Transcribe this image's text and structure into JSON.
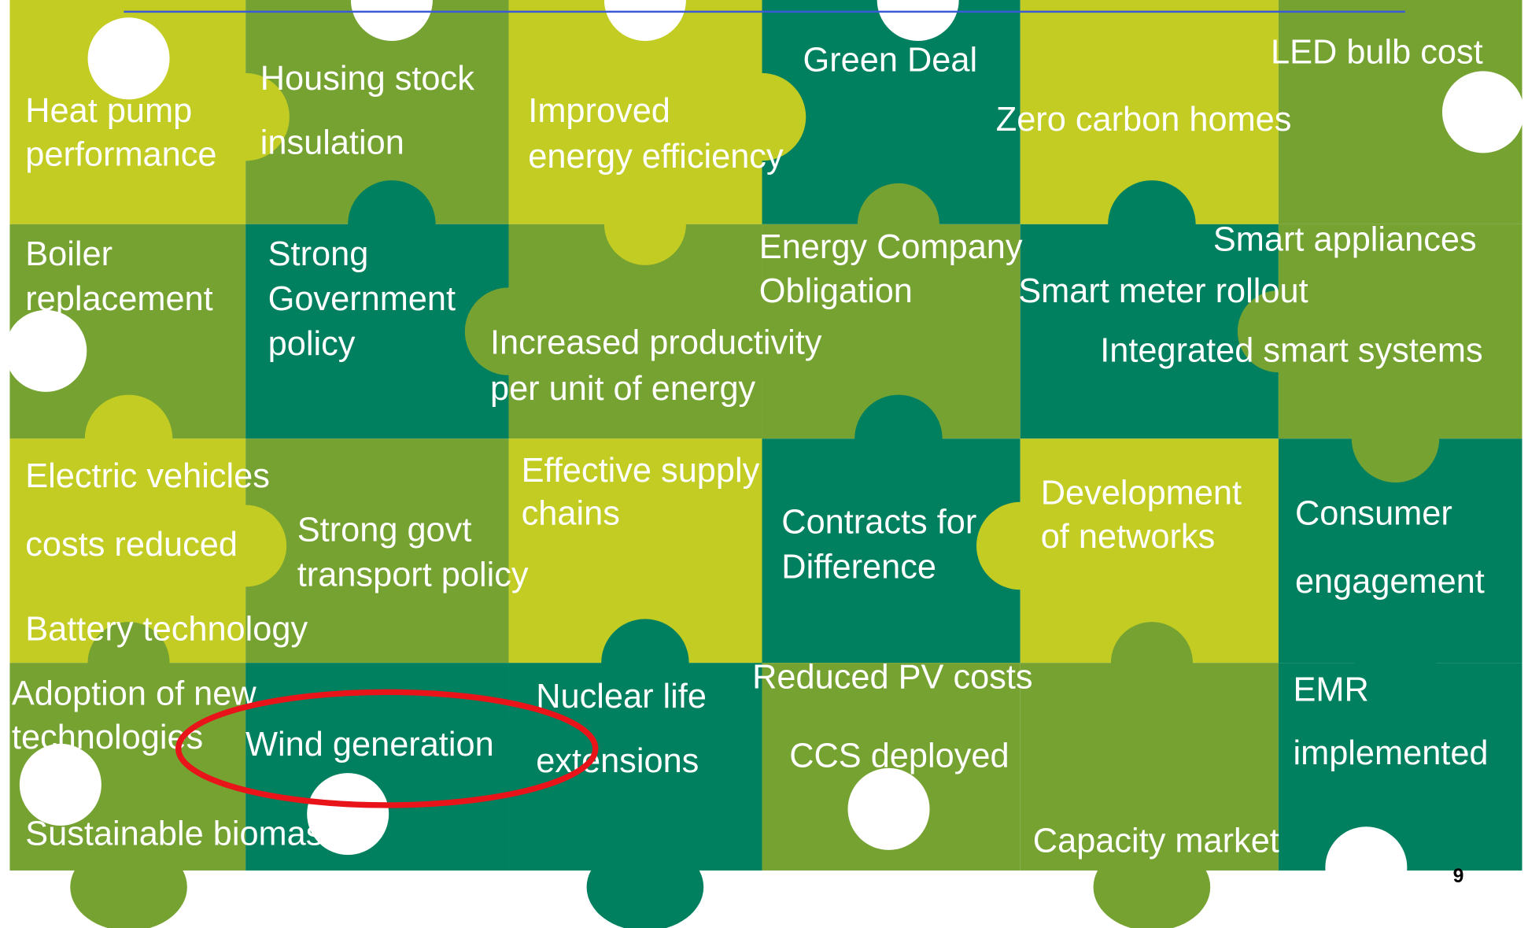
{
  "pieces": [
    {
      "lines": [
        "Heat pump",
        "performance"
      ]
    },
    {
      "lines": [
        "Housing stock",
        "insulation"
      ]
    },
    {
      "lines": [
        "Improved",
        "energy efficiency"
      ]
    },
    {
      "lines": [
        "Green Deal"
      ]
    },
    {
      "lines": [
        "LED bulb cost"
      ]
    },
    {
      "lines": [
        "Zero carbon homes"
      ]
    },
    {
      "lines": [
        "Boiler",
        "replacement"
      ]
    },
    {
      "lines": [
        "Strong",
        "Government",
        "policy"
      ]
    },
    {
      "lines": [
        "Energy Company",
        "Obligation"
      ]
    },
    {
      "lines": [
        "Smart appliances"
      ]
    },
    {
      "lines": [
        "Smart meter rollout"
      ]
    },
    {
      "lines": [
        "Increased productivity",
        "per unit of energy"
      ]
    },
    {
      "lines": [
        "Integrated smart systems"
      ]
    },
    {
      "lines": [
        "Electric vehicles",
        "costs reduced"
      ]
    },
    {
      "lines": [
        "Effective supply",
        "chains"
      ]
    },
    {
      "lines": [
        "Strong govt",
        "transport policy"
      ]
    },
    {
      "lines": [
        "Contracts for",
        "Difference"
      ]
    },
    {
      "lines": [
        "Development",
        "of networks"
      ]
    },
    {
      "lines": [
        "Consumer",
        "engagement"
      ]
    },
    {
      "lines": [
        "Battery technology"
      ]
    },
    {
      "lines": [
        "Adoption of new",
        "technologies"
      ]
    },
    {
      "lines": [
        "Reduced PV costs"
      ]
    },
    {
      "lines": [
        "EMR",
        "implemented"
      ]
    },
    {
      "lines": [
        "Nuclear life",
        "extensions"
      ]
    },
    {
      "lines": [
        "Wind generation"
      ]
    },
    {
      "lines": [
        "CCS deployed"
      ]
    },
    {
      "lines": [
        "Sustainable biomas"
      ]
    },
    {
      "lines": [
        "Capacity market"
      ]
    }
  ],
  "page_number": "9"
}
